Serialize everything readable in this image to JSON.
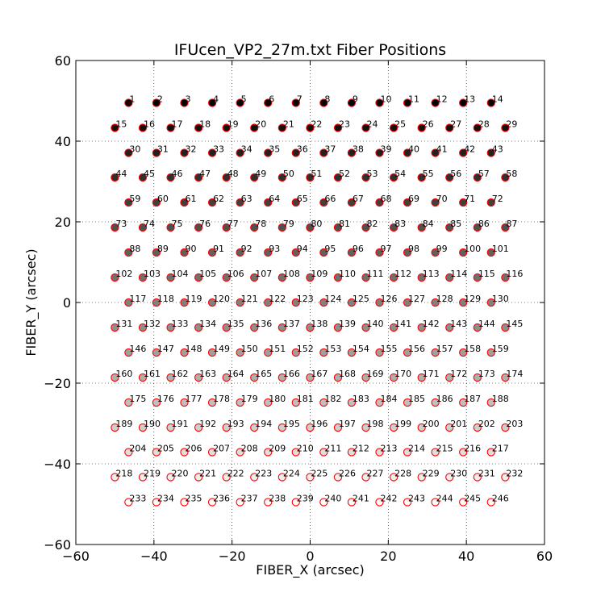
{
  "chart_data": {
    "type": "scatter",
    "title": "IFUcen_VP2_27m.txt Fiber Positions",
    "xlabel": "FIBER_X (arcsec)",
    "ylabel": "FIBER_Y (arcsec)",
    "xlim": [
      -60,
      60
    ],
    "ylim": [
      -60,
      60
    ],
    "xticks": [
      -60,
      -40,
      -20,
      0,
      20,
      40,
      60
    ],
    "yticks": [
      -60,
      -40,
      -20,
      0,
      20,
      40,
      60
    ],
    "xtick_labels": [
      "−60",
      "−40",
      "−20",
      "0",
      "20",
      "40",
      "60"
    ],
    "ytick_labels": [
      "−60",
      "−40",
      "−20",
      "0",
      "20",
      "40",
      "60"
    ],
    "grid": "dotted",
    "marker_edge_color": "#ff0000",
    "fill_colormap": "darker toward high Y (black at top, white at bottom)",
    "rows": [
      {
        "y": 49.5,
        "x_start": -46.5,
        "count": 14,
        "first_id": 1
      },
      {
        "y": 43.3,
        "x_start": -50.0,
        "count": 15,
        "first_id": 15
      },
      {
        "y": 37.1,
        "x_start": -46.5,
        "count": 14,
        "first_id": 30
      },
      {
        "y": 31.0,
        "x_start": -50.0,
        "count": 15,
        "first_id": 44
      },
      {
        "y": 24.8,
        "x_start": -46.5,
        "count": 14,
        "first_id": 59
      },
      {
        "y": 18.6,
        "x_start": -50.0,
        "count": 15,
        "first_id": 73
      },
      {
        "y": 12.4,
        "x_start": -46.5,
        "count": 14,
        "first_id": 88
      },
      {
        "y": 6.2,
        "x_start": -50.0,
        "count": 15,
        "first_id": 102
      },
      {
        "y": 0.0,
        "x_start": -46.5,
        "count": 14,
        "first_id": 117
      },
      {
        "y": -6.2,
        "x_start": -50.0,
        "count": 15,
        "first_id": 131
      },
      {
        "y": -12.4,
        "x_start": -46.5,
        "count": 14,
        "first_id": 146
      },
      {
        "y": -18.6,
        "x_start": -50.0,
        "count": 15,
        "first_id": 160
      },
      {
        "y": -24.8,
        "x_start": -46.5,
        "count": 14,
        "first_id": 175
      },
      {
        "y": -31.0,
        "x_start": -50.0,
        "count": 15,
        "first_id": 189
      },
      {
        "y": -37.1,
        "x_start": -46.5,
        "count": 14,
        "first_id": 204
      },
      {
        "y": -43.3,
        "x_start": -50.0,
        "count": 15,
        "first_id": 218
      },
      {
        "y": -49.5,
        "x_start": -46.5,
        "count": 14,
        "first_id": 233
      }
    ],
    "x_spacing": 7.14
  }
}
